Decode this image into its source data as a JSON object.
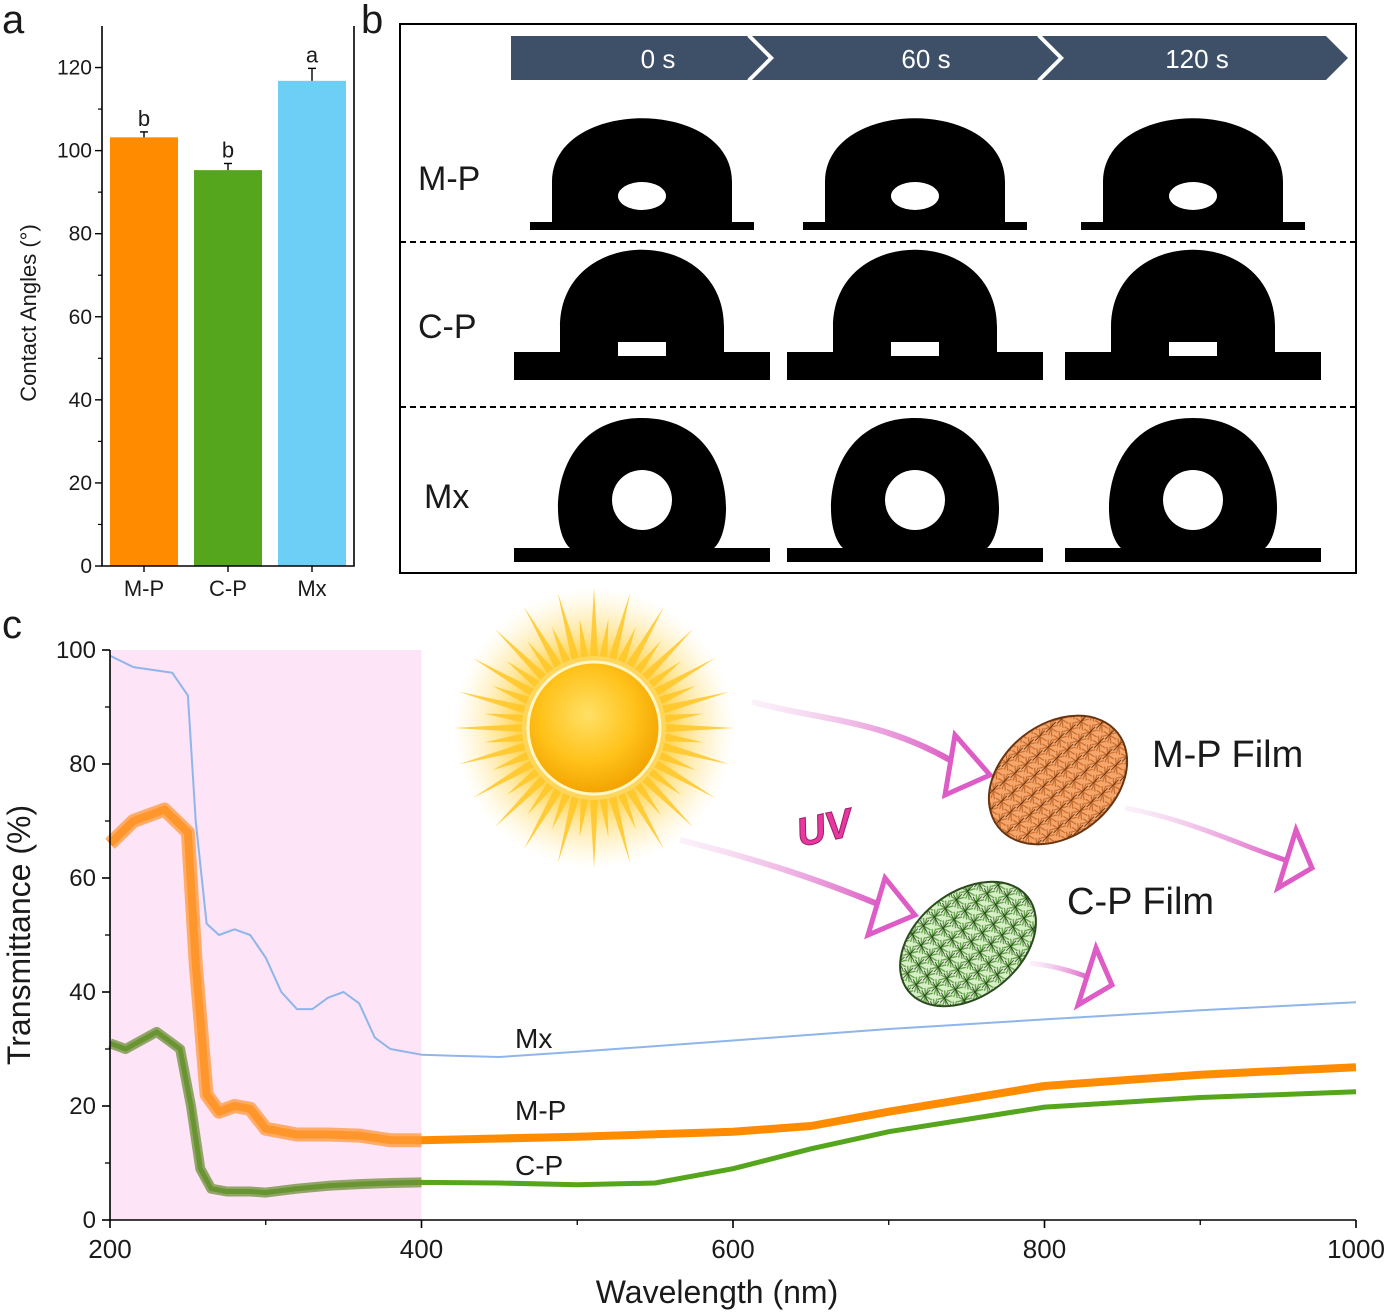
{
  "panels": {
    "a": "a",
    "b": "b",
    "c": "c"
  },
  "colors": {
    "M-P": "#ff8c00",
    "C-P": "#55a51d",
    "Mx": "#6ecff6",
    "mx_line": "#8fb5ea",
    "uv_region": "#fde4f7",
    "arrow_bar": "#3d5068",
    "uv_text": "#e8389f",
    "arrow_pink": "#e05fc8"
  },
  "chart_data": [
    {
      "type": "bar",
      "panel": "a",
      "categories": [
        "M-P",
        "C-P",
        "Mx"
      ],
      "values": [
        103.2,
        95.3,
        116.8
      ],
      "errors": [
        1.3,
        1.6,
        3.0
      ],
      "significance": [
        "b",
        "b",
        "a"
      ],
      "ylabel": "Contact Angles (°)",
      "ylim": [
        0,
        130
      ],
      "yticks": [
        "0",
        "20",
        "40",
        "60",
        "80",
        "100",
        "120"
      ]
    },
    {
      "type": "line",
      "panel": "c",
      "xlabel": "Wavelength (nm)",
      "ylabel": "Transmittance (%)",
      "xlim": [
        200,
        1000
      ],
      "ylim": [
        0,
        100
      ],
      "xticks": [
        "200",
        "400",
        "600",
        "800",
        "1000"
      ],
      "yticks": [
        "0",
        "20",
        "40",
        "60",
        "80",
        "100"
      ],
      "shaded_region": [
        200,
        400
      ],
      "series": [
        {
          "name": "Mx",
          "x": [
            200,
            215,
            240,
            250,
            255,
            262,
            270,
            280,
            290,
            300,
            310,
            320,
            330,
            340,
            350,
            360,
            370,
            380,
            400,
            420,
            450,
            500,
            600,
            700,
            800,
            900,
            1000
          ],
          "y": [
            99,
            97,
            96,
            92,
            70,
            52,
            50,
            51,
            50,
            46,
            40,
            37,
            37,
            39,
            40,
            38,
            32,
            30,
            29,
            28.8,
            28.6,
            29.5,
            31.5,
            33.5,
            35.2,
            36.8,
            38.2
          ]
        },
        {
          "name": "M-P",
          "x": [
            200,
            215,
            235,
            250,
            255,
            262,
            270,
            280,
            290,
            300,
            320,
            340,
            360,
            380,
            400,
            450,
            500,
            600,
            650,
            700,
            800,
            900,
            1000
          ],
          "y": [
            66,
            70,
            72,
            68,
            45,
            22,
            19,
            20,
            19.5,
            16,
            15,
            15,
            14.8,
            14,
            14,
            14.3,
            14.6,
            15.5,
            16.5,
            19,
            23.5,
            25.5,
            26.8
          ]
        },
        {
          "name": "C-P",
          "x": [
            200,
            210,
            230,
            245,
            252,
            258,
            265,
            275,
            290,
            300,
            320,
            340,
            360,
            380,
            400,
            450,
            500,
            550,
            600,
            650,
            700,
            800,
            900,
            1000
          ],
          "y": [
            31,
            30,
            33,
            30,
            20,
            9,
            5.5,
            5,
            5,
            4.8,
            5.5,
            6,
            6.3,
            6.5,
            6.6,
            6.5,
            6.2,
            6.5,
            9,
            12.5,
            15.5,
            19.8,
            21.5,
            22.5
          ]
        }
      ],
      "curve_labels": [
        "Mx",
        "M-P",
        "C-P"
      ]
    }
  ],
  "drop_panel": {
    "timeline": [
      "0 s",
      "60 s",
      "120 s"
    ],
    "rows": [
      "M-P",
      "C-P",
      "Mx"
    ]
  },
  "illustration": {
    "uv_label": "UV",
    "mp_film_label": "M-P Film",
    "cp_film_label": "C-P Film",
    "icons": [
      "sun-icon",
      "arrow-icon",
      "film-icon"
    ]
  }
}
